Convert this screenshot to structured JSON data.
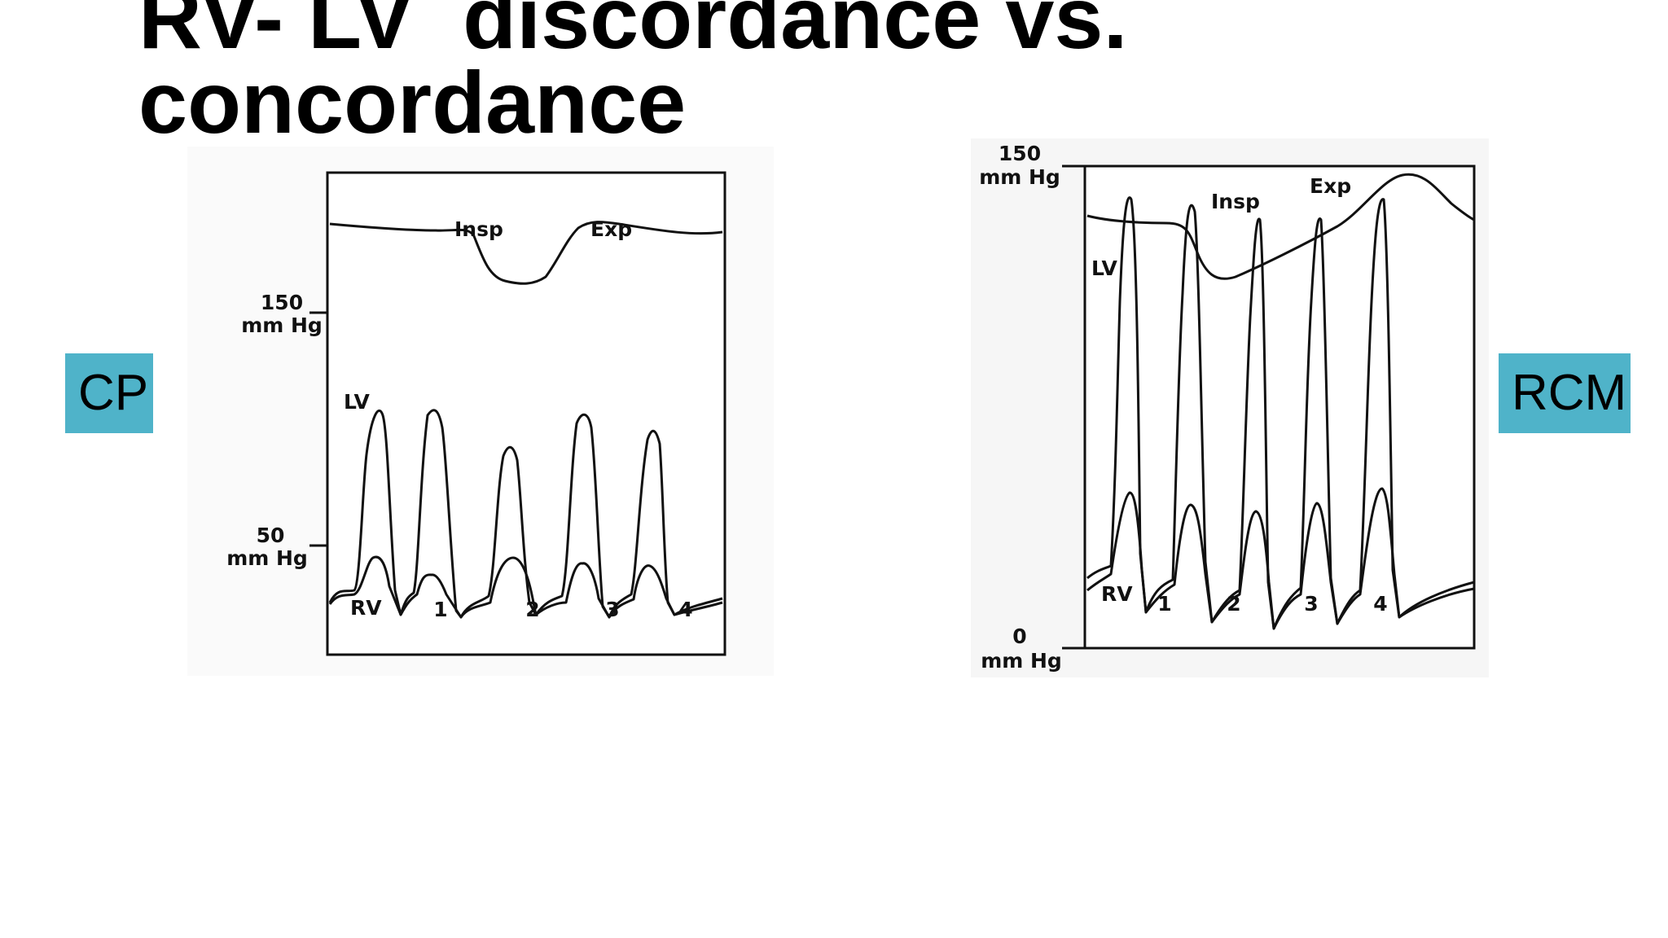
{
  "slide": {
    "title_line1": "RV- LV  discordance vs.",
    "title_line2": "concordance"
  },
  "tags": {
    "left": "CP",
    "right": "RCM",
    "color": "#4fb3c9"
  },
  "figure_cp": {
    "axis_top_value": "150",
    "axis_top_unit": "mm Hg",
    "axis_mid_value": "50",
    "axis_mid_unit": "mm Hg",
    "insp_label": "Insp",
    "exp_label": "Exp",
    "lv_label": "LV",
    "rv_label": "RV",
    "beat_labels": [
      "1",
      "2",
      "3",
      "4"
    ]
  },
  "figure_rcm": {
    "axis_top_value": "150",
    "axis_top_unit": "mm Hg",
    "axis_bottom_value": "0",
    "axis_bottom_unit": "mm Hg",
    "insp_label": "Insp",
    "exp_label": "Exp",
    "lv_label": "LV",
    "rv_label": "RV",
    "beat_labels": [
      "1",
      "2",
      "3",
      "4"
    ]
  }
}
